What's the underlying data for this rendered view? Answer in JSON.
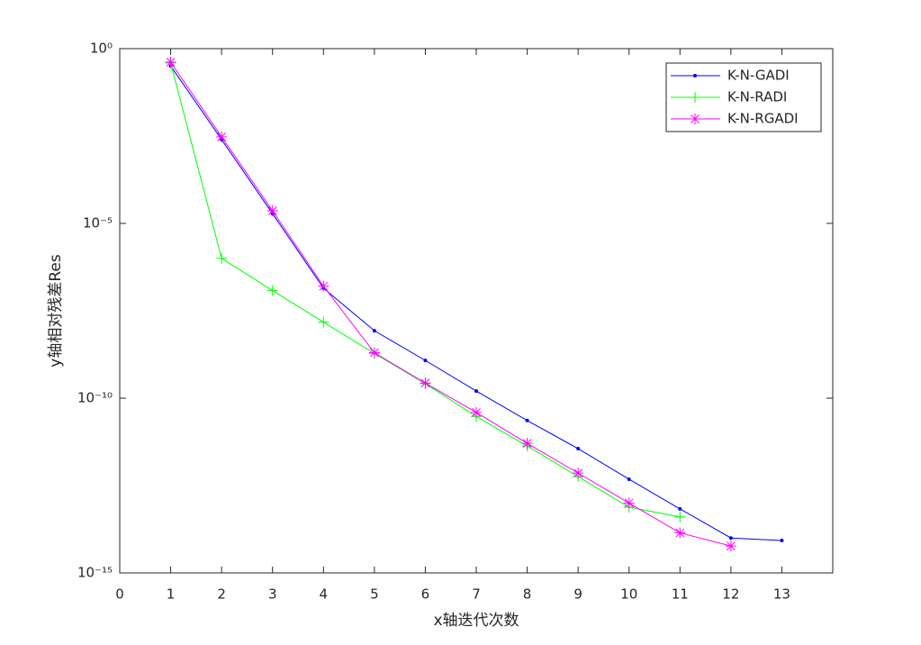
{
  "chart_data": {
    "type": "line",
    "x_label": "x轴迭代次数",
    "y_label": "y轴相对残差Res",
    "x": [
      1,
      2,
      3,
      4,
      5,
      6,
      7,
      8,
      9,
      10,
      11,
      12,
      13
    ],
    "series": [
      {
        "name": "K-N-GADI",
        "color": "#0000ff",
        "marker": "dot",
        "values": [
          0.32,
          0.0025,
          1.9e-05,
          1.4e-07,
          8.5e-09,
          1.2e-09,
          1.6e-10,
          2.3e-11,
          3.6e-12,
          4.8e-13,
          6.8e-14,
          1e-14,
          8.5e-15
        ]
      },
      {
        "name": "K-N-RADI",
        "color": "#00ff00",
        "marker": "plus",
        "values": [
          0.39,
          1e-06,
          1.2e-07,
          1.5e-08,
          1.9e-09,
          2.6e-10,
          3e-11,
          4.3e-12,
          5.7e-13,
          7.6e-14,
          4e-14,
          null,
          null
        ]
      },
      {
        "name": "K-N-RGADI",
        "color": "#ff00ff",
        "marker": "asterisk",
        "values": [
          0.41,
          0.003,
          2.3e-05,
          1.6e-07,
          2e-09,
          2.7e-10,
          3.9e-11,
          5.1e-12,
          7.2e-13,
          1e-13,
          1.4e-14,
          5.9e-15,
          null
        ]
      }
    ],
    "xlim": [
      0,
      14
    ],
    "xticks": [
      0,
      1,
      2,
      3,
      4,
      5,
      6,
      7,
      8,
      9,
      10,
      11,
      12,
      13
    ],
    "ylim": [
      1e-15,
      1
    ],
    "ylog": true,
    "yticks": [
      {
        "value": 1,
        "label": "10⁰"
      },
      {
        "value": 1e-05,
        "label": "10⁻⁵"
      },
      {
        "value": 1e-10,
        "label": "10⁻¹⁰"
      },
      {
        "value": 1e-15,
        "label": "10⁻¹⁵"
      }
    ],
    "legend": "top-right",
    "grid": false
  }
}
